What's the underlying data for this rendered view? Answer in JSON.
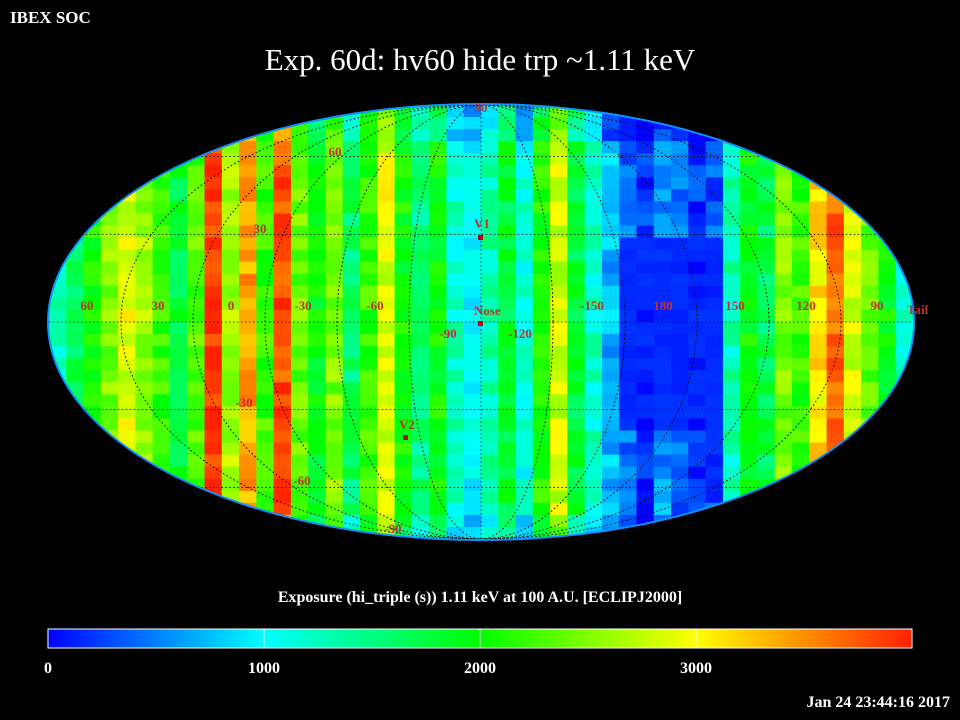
{
  "header": {
    "label": "IBEX SOC"
  },
  "title": "Exp.   60d: hv60 hide trp ~1.11 keV",
  "map": {
    "projection": "mollweide",
    "longitude_labels": [
      "60",
      "30",
      "0",
      "-30",
      "-60",
      "-90",
      "-120",
      "-150",
      "180",
      "150",
      "120",
      "90"
    ],
    "latitude_labels": [
      "90",
      "60",
      "30",
      "-30",
      "-60",
      "-90"
    ],
    "markers": [
      {
        "name": "V1",
        "label": "V1"
      },
      {
        "name": "Nose",
        "label": "Nose"
      },
      {
        "name": "V2",
        "label": "V2"
      },
      {
        "name": "Tail",
        "label": "Tail"
      }
    ],
    "colors": {
      "label": "#c03030",
      "grid": "#000000",
      "marker": "#c00000"
    }
  },
  "colorbar": {
    "title": "Exposure (hi_triple (s))  1.11 keV at 100 A.U. [ECLIPJ2000]",
    "ticks": [
      {
        "value": 0,
        "label": "0"
      },
      {
        "value": 1000,
        "label": "1000"
      },
      {
        "value": 2000,
        "label": "2000"
      },
      {
        "value": 3000,
        "label": "3000"
      }
    ],
    "range": [
      0,
      4000
    ],
    "colors": [
      "#0000ff",
      "#00ffff",
      "#00ff00",
      "#ffff00",
      "#ff2000"
    ]
  },
  "timestamp": "Jan 24 23:44:16 2017"
}
